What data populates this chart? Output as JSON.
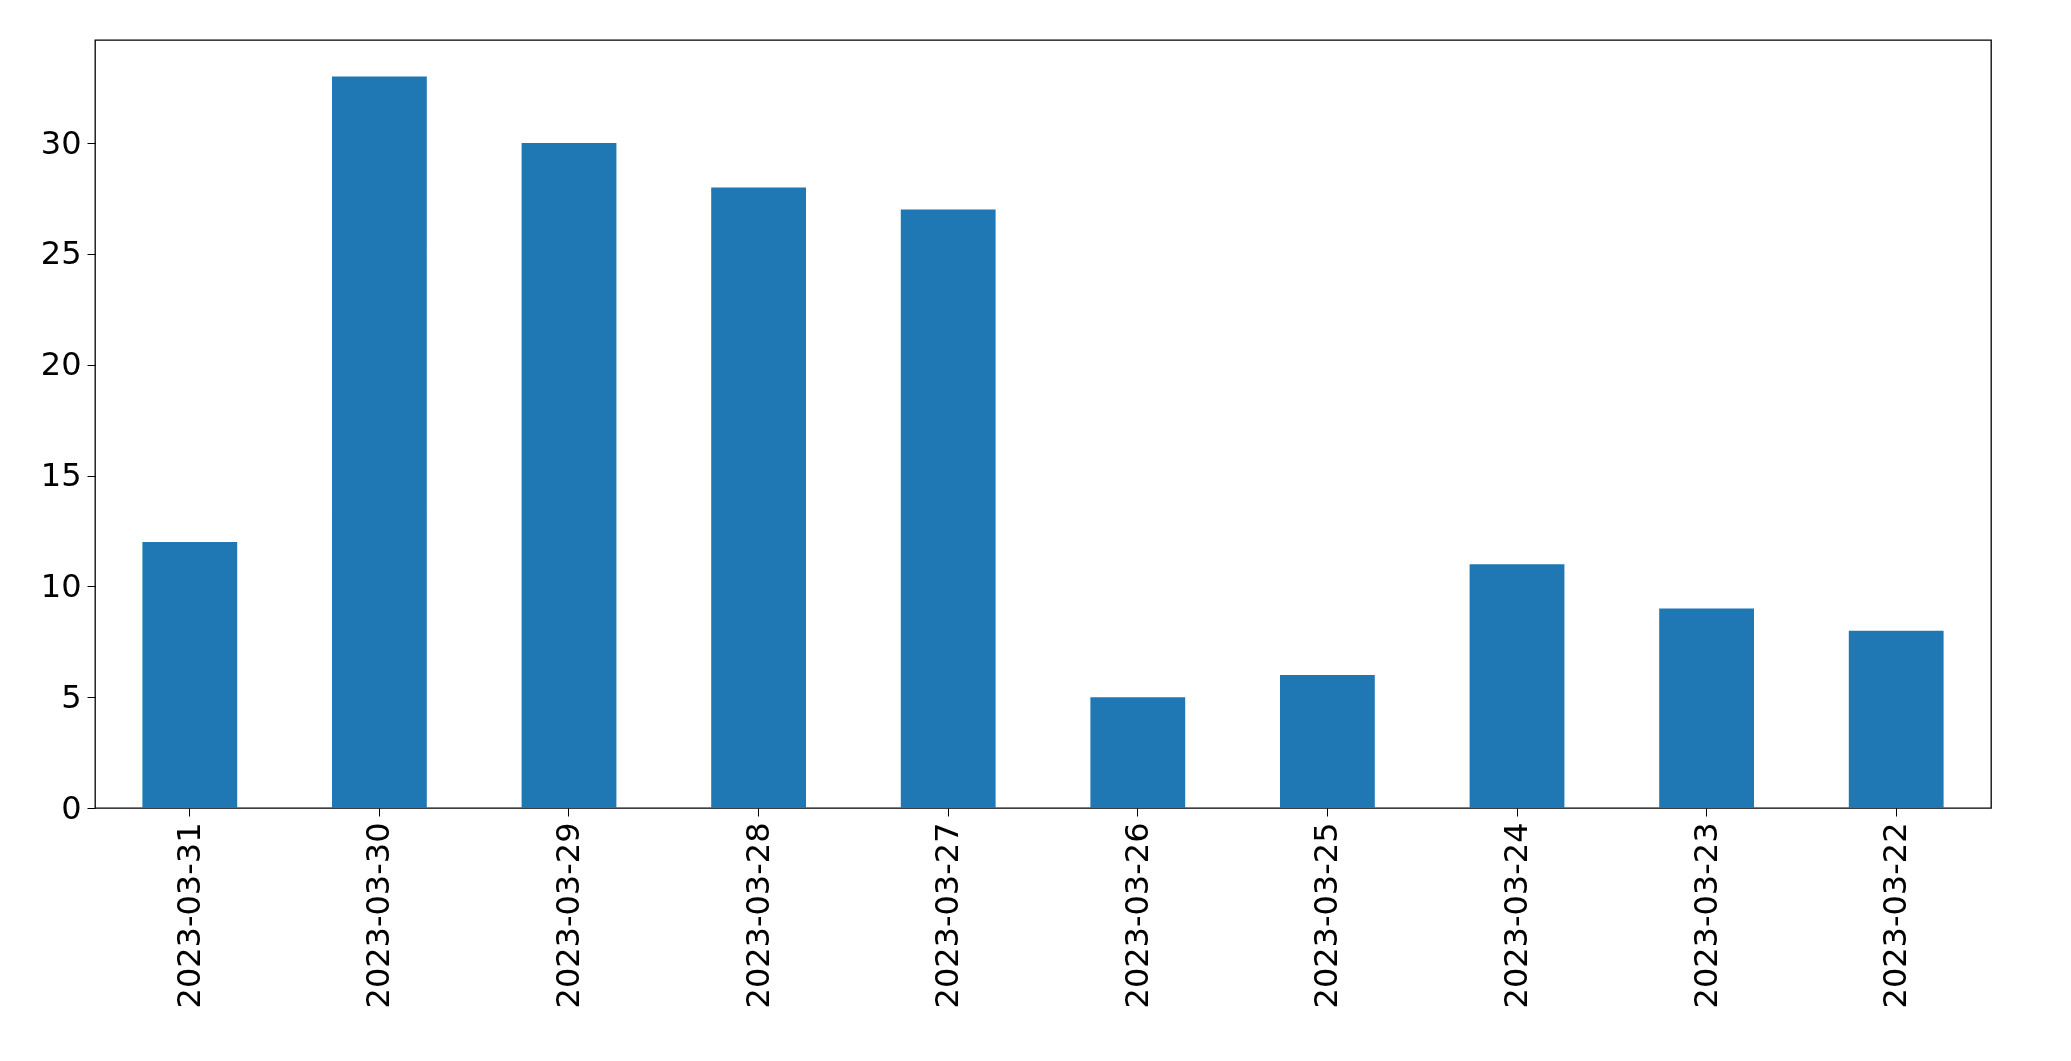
{
  "chart_data": {
    "type": "bar",
    "categories": [
      "2023-03-31",
      "2023-03-30",
      "2023-03-29",
      "2023-03-28",
      "2023-03-27",
      "2023-03-26",
      "2023-03-25",
      "2023-03-24",
      "2023-03-23",
      "2023-03-22"
    ],
    "values": [
      12,
      33,
      30,
      28,
      27,
      5,
      6,
      11,
      9,
      8
    ],
    "color": "#1f77b4",
    "ylim": [
      0,
      34.65
    ],
    "yticks": [
      0,
      5,
      10,
      15,
      20,
      25,
      30
    ],
    "grid": false
  }
}
